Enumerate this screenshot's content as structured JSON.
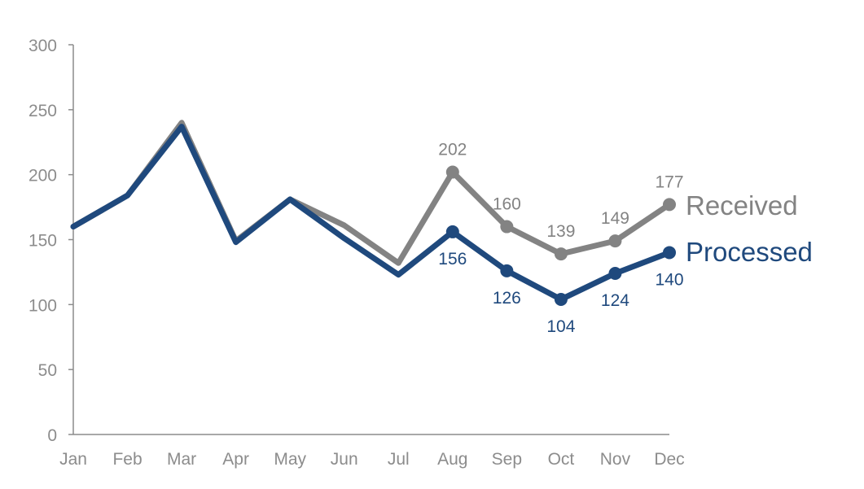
{
  "colors": {
    "received": "#838383",
    "processed": "#1f497d",
    "axis": "#8c8c8c",
    "tick_text": "#8c8c8c"
  },
  "chart_data": {
    "type": "line",
    "title": "",
    "xlabel": "",
    "ylabel": "",
    "categories": [
      "Jan",
      "Feb",
      "Mar",
      "Apr",
      "May",
      "Jun",
      "Jul",
      "Aug",
      "Sep",
      "Oct",
      "Nov",
      "Dec"
    ],
    "ylim": [
      0,
      300
    ],
    "yticks": [
      0,
      50,
      100,
      150,
      200,
      250,
      300
    ],
    "grid": false,
    "legend": "direct-labels-right",
    "series": [
      {
        "key": "received",
        "name": "Received",
        "values": [
          160,
          184,
          240,
          149,
          181,
          161,
          132,
          202,
          160,
          139,
          149,
          177
        ],
        "labeled_from_index": 7
      },
      {
        "key": "processed",
        "name": "Processed",
        "values": [
          160,
          184,
          237,
          148,
          181,
          151,
          123,
          156,
          126,
          104,
          124,
          140
        ],
        "labeled_from_index": 7
      }
    ]
  }
}
